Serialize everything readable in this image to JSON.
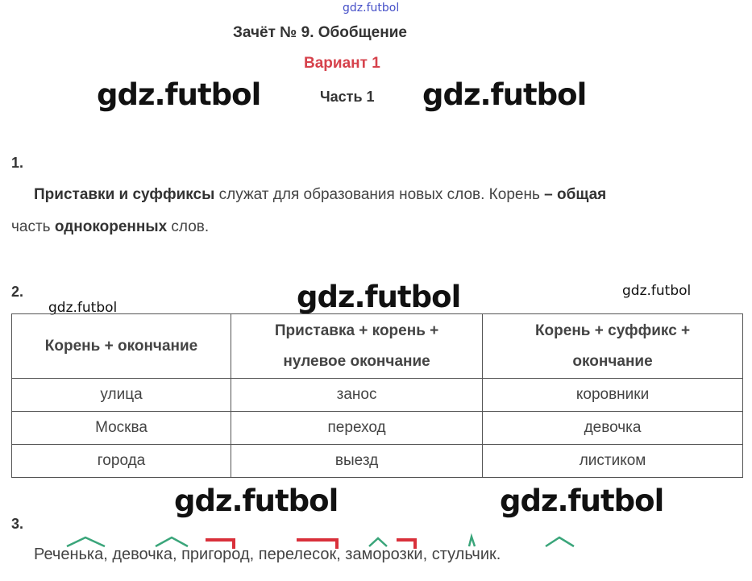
{
  "watermark": "gdz.futbol",
  "header": {
    "title": "Зачёт № 9. Обобщение",
    "variant": "Вариант 1",
    "part": "Часть 1"
  },
  "task1": {
    "number": "1.",
    "bold1": "Приставки и суффиксы",
    "text1": " служат для образования новых слов. Корень ",
    "bold2": "– общая",
    "text2": "часть ",
    "bold3": "однокоренных",
    "text3": " слов."
  },
  "task2": {
    "number": "2.",
    "headers": [
      "Корень + окончание",
      "Приставка + корень + нулевое окончание",
      "Корень + суффикс + окончание"
    ],
    "rows": [
      [
        "улица",
        "занос",
        "коровники"
      ],
      [
        "Москва",
        "переход",
        "девочка"
      ],
      [
        "города",
        "выезд",
        "листиком"
      ]
    ]
  },
  "task3": {
    "number": "3.",
    "text": "Реченька, девочка, пригород, перелесок, заморозки, стульчик.",
    "colors": {
      "suffix": "#3aa57a",
      "prefix": "#d9303a"
    }
  }
}
